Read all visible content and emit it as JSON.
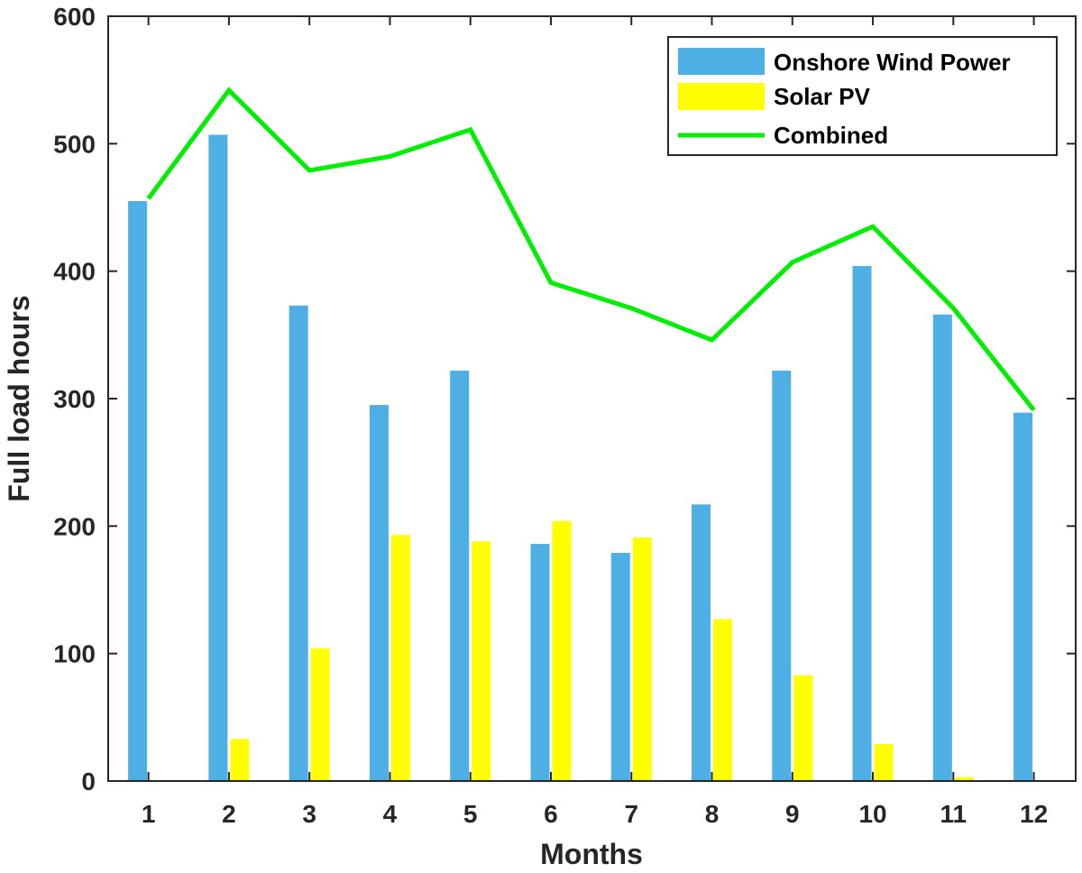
{
  "chart_data": {
    "type": "bar",
    "xlabel": "Months",
    "ylabel": "Full load hours",
    "categories": [
      "1",
      "2",
      "3",
      "4",
      "5",
      "6",
      "7",
      "8",
      "9",
      "10",
      "11",
      "12"
    ],
    "ylim": [
      0,
      600
    ],
    "yticks": [
      "0",
      "100",
      "200",
      "300",
      "400",
      "500",
      "600"
    ],
    "grid": false,
    "legend_position": "top-right",
    "series": [
      {
        "name": "Onshore Wind Power",
        "type": "bar",
        "color": "#4dafe3",
        "values": [
          455,
          507,
          373,
          295,
          322,
          186,
          179,
          217,
          322,
          404,
          366,
          289
        ]
      },
      {
        "name": "Solar PV",
        "type": "bar",
        "color": "#ffff00",
        "values": [
          0,
          33,
          104,
          193,
          188,
          204,
          191,
          127,
          83,
          29,
          3,
          0
        ]
      },
      {
        "name": "Combined",
        "type": "line",
        "color": "#00ee00",
        "values": [
          457,
          542,
          479,
          490,
          511,
          391,
          371,
          346,
          407,
          435,
          371,
          291
        ]
      }
    ]
  }
}
